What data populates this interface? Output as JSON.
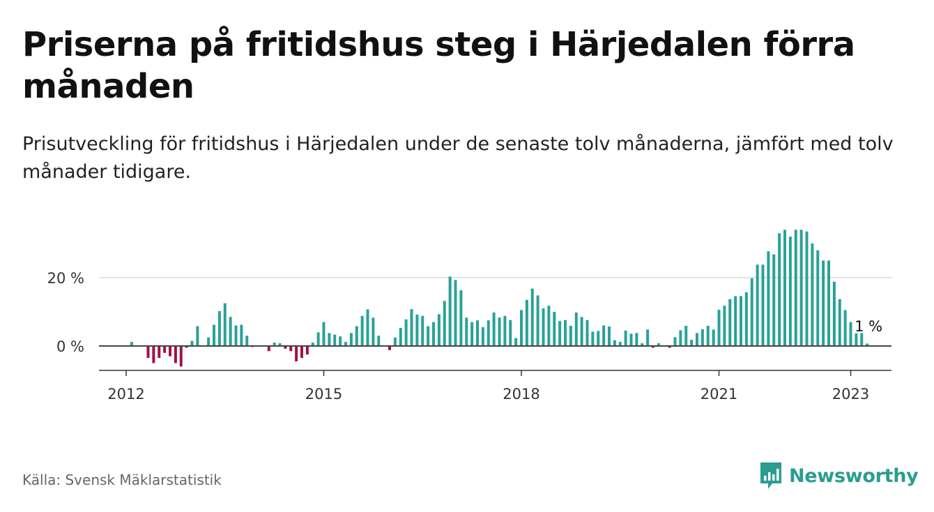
{
  "title": "Priserna på fritidshus steg i Härjedalen förra månaden",
  "subtitle": "Prisutveckling för fritidshus i Härjedalen under de senaste tolv månaderna, jämfört med tolv månader tidigare.",
  "source": "Källa: Svensk Mäklarstatistik",
  "brand": "Newsworthy",
  "colors": {
    "positive": "#2aa198",
    "negative": "#a0114a",
    "brand": "#2a9d8f"
  },
  "chart_data": {
    "type": "bar",
    "x_start": "2012-01",
    "xticks": [
      {
        "label": "2012",
        "date": "2012-01"
      },
      {
        "label": "2015",
        "date": "2015-01"
      },
      {
        "label": "2018",
        "date": "2018-01"
      },
      {
        "label": "2021",
        "date": "2021-01"
      },
      {
        "label": "2023",
        "date": "2023-01"
      }
    ],
    "yticks": [
      {
        "label": "0 %",
        "value": 0
      },
      {
        "label": "20 %",
        "value": 20
      }
    ],
    "ylim": [
      -7,
      35
    ],
    "end_label": "1 %",
    "values": [
      null,
      1.2,
      null,
      null,
      -3.5,
      -5,
      -3.5,
      -2,
      -3,
      -5,
      -6,
      -0.5,
      1.5,
      5.8,
      null,
      2.5,
      6.2,
      10.2,
      12.5,
      8.5,
      6,
      6.2,
      3,
      -0.3,
      null,
      null,
      -1.5,
      1,
      0.8,
      -0.8,
      -1.5,
      -4.5,
      -3.5,
      -2.5,
      1,
      4,
      7,
      3.8,
      3.3,
      2.8,
      1.2,
      3.8,
      5.8,
      8.8,
      10.7,
      8.3,
      3,
      null,
      -1.2,
      2.5,
      5.3,
      7.8,
      10.8,
      9.2,
      8.8,
      5.8,
      7,
      9.3,
      13.2,
      20.3,
      19.3,
      16.3,
      8.3,
      7,
      7.5,
      5.5,
      7.5,
      9.8,
      8.3,
      8.8,
      7.6,
      2.3,
      10.5,
      13.5,
      16.8,
      14.8,
      11,
      11.8,
      10,
      7.3,
      7.6,
      5.9,
      9.8,
      8.5,
      7.6,
      4.2,
      4.4,
      6,
      5.7,
      1.7,
      1.2,
      4.5,
      3.6,
      3.8,
      0.8,
      4.8,
      -0.5,
      0.8,
      null,
      -0.5,
      2.6,
      4.6,
      5.9,
      1.8,
      3.8,
      4.9,
      5.9,
      4.8,
      10.6,
      11.8,
      13.7,
      14.6,
      14.6,
      15.7,
      19.8,
      23.8,
      23.8,
      27.7,
      26.8,
      33,
      34,
      32,
      34,
      34,
      33.5,
      30,
      28,
      25,
      25,
      18.8,
      13.7,
      10.5,
      7,
      3.7,
      4.7,
      0.7
    ]
  }
}
